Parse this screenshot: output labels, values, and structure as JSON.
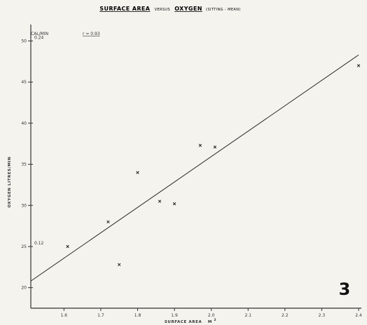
{
  "chart_data": {
    "type": "scatter",
    "title": {
      "part1": "SURFACE AREA",
      "part2": "VERSUS",
      "part3": "OXYGEN",
      "part4": "(SITTING - MEAN)"
    },
    "xlabel": "SURFACE AREA",
    "xlabel_unit": "M",
    "xlabel_sup": "2",
    "ylabel": "OXYGEN   LITRES/MIN",
    "cal_label": "CAL/MIN",
    "r_label": "r = 0.93",
    "cal_ticks": [
      "0.24",
      "0.12"
    ],
    "x_ticks": [
      "1.6",
      "1.7",
      "1.8",
      "1.9",
      "2.0",
      "2.1",
      "2.2",
      "2.3",
      "2.4"
    ],
    "y_ticks": [
      "20",
      "25",
      "30",
      "35",
      "40",
      "45",
      "50"
    ],
    "xlim": [
      1.51,
      2.4
    ],
    "ylim": [
      17.5,
      52
    ],
    "points": [
      {
        "x": 1.61,
        "y": 25.0
      },
      {
        "x": 1.72,
        "y": 28.0
      },
      {
        "x": 1.75,
        "y": 22.8
      },
      {
        "x": 1.8,
        "y": 34.0
      },
      {
        "x": 1.86,
        "y": 30.5
      },
      {
        "x": 1.9,
        "y": 30.2
      },
      {
        "x": 1.97,
        "y": 37.3
      },
      {
        "x": 2.01,
        "y": 37.1
      },
      {
        "x": 2.4,
        "y": 47.0
      }
    ],
    "regression": {
      "x": [
        1.51,
        2.4
      ],
      "y": [
        20.8,
        48.3
      ]
    },
    "panel_number": "3",
    "grid": false
  }
}
